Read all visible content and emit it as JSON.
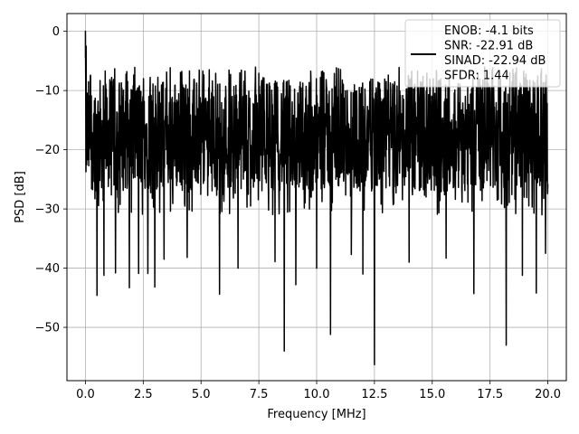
{
  "chart_data": {
    "type": "line",
    "title": "",
    "xlabel": "Frequency [MHz]",
    "ylabel": "PSD [dB]",
    "xlim": [
      -0.8,
      20.8
    ],
    "ylim": [
      -59,
      3
    ],
    "xticks": [
      0,
      2.5,
      5,
      7.5,
      10,
      12.5,
      15,
      17.5,
      20
    ],
    "xtick_labels": [
      "0.0",
      "2.5",
      "5.0",
      "7.5",
      "10.0",
      "12.5",
      "15.0",
      "17.5",
      "20.0"
    ],
    "yticks": [
      0,
      -10,
      -20,
      -30,
      -40,
      -50
    ],
    "ytick_labels": [
      "0",
      "−10",
      "−20",
      "−30",
      "−40",
      "−50"
    ],
    "grid": true,
    "legend_placement": "top-right",
    "series": [
      {
        "name": "ENOB: -4.1 bits\nSNR: -22.91 dB\nSINAD: -22.94 dB\nSFDR: 1.44",
        "color": "#000000",
        "peak": [
          0.0,
          0.0
        ],
        "noise_band_db": [
          -27,
          -8
        ],
        "deep_nulls": [
          [
            0.5,
            -44.6
          ],
          [
            0.8,
            -41.2
          ],
          [
            1.3,
            -40.8
          ],
          [
            1.9,
            -43.3
          ],
          [
            2.3,
            -40.9
          ],
          [
            2.7,
            -40.9
          ],
          [
            3.0,
            -43.2
          ],
          [
            3.4,
            -38.5
          ],
          [
            4.4,
            -38.2
          ],
          [
            5.8,
            -44.4
          ],
          [
            6.6,
            -40.0
          ],
          [
            8.2,
            -38.9
          ],
          [
            8.6,
            -54.0
          ],
          [
            9.1,
            -42.8
          ],
          [
            10.0,
            -40.0
          ],
          [
            10.6,
            -51.2
          ],
          [
            11.5,
            -37.7
          ],
          [
            12.0,
            -41.0
          ],
          [
            12.5,
            -56.3
          ],
          [
            14.0,
            -39.0
          ],
          [
            15.6,
            -38.3
          ],
          [
            16.8,
            -44.3
          ],
          [
            18.2,
            -53.0
          ],
          [
            18.9,
            -41.2
          ],
          [
            19.5,
            -44.2
          ],
          [
            19.9,
            -37.5
          ]
        ]
      }
    ]
  }
}
